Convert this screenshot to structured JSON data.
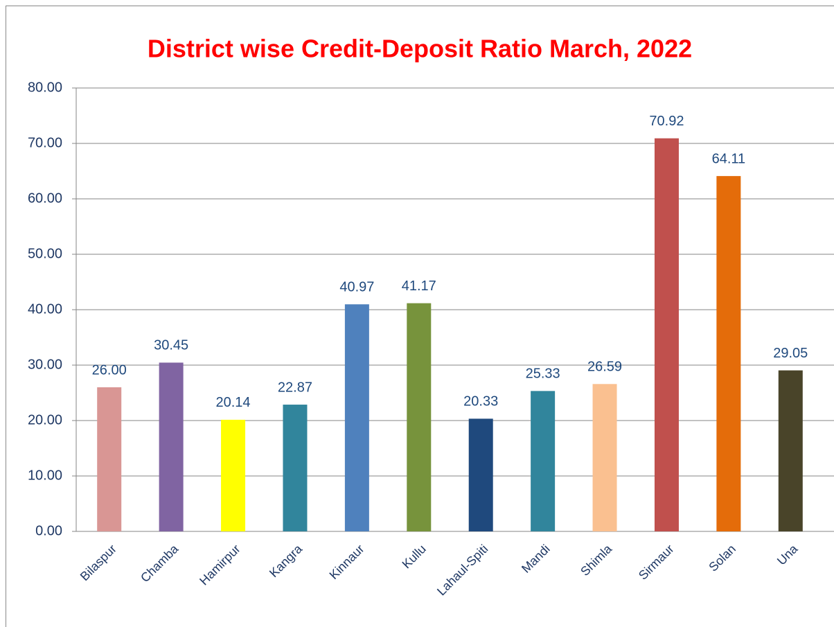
{
  "chart_data": {
    "type": "bar",
    "title": "District wise Credit-Deposit Ratio March, 2022",
    "categories": [
      "Bilaspur",
      "Chamba",
      "Hamirpur",
      "Kangra",
      "Kinnaur",
      "Kullu",
      "Lahaul-Spiti",
      "Mandi",
      "Shimla",
      "Sirmaur",
      "Solan",
      "Una"
    ],
    "values": [
      26.0,
      30.45,
      20.14,
      22.87,
      40.97,
      41.17,
      20.33,
      25.33,
      26.59,
      70.92,
      64.11,
      29.05
    ],
    "value_labels": [
      "26.00",
      "30.45",
      "20.14",
      "22.87",
      "40.97",
      "41.17",
      "20.33",
      "25.33",
      "26.59",
      "70.92",
      "64.11",
      "29.05"
    ],
    "colors": [
      "#d99694",
      "#8064a2",
      "#ffff00",
      "#31859c",
      "#4f81bd",
      "#77933c",
      "#1f497d",
      "#31859c",
      "#fac090",
      "#c0504d",
      "#e46c0a",
      "#494429"
    ],
    "ylim": [
      0,
      80
    ],
    "yticks": [
      {
        "value": 0,
        "label": "0.00"
      },
      {
        "value": 10,
        "label": "10.00"
      },
      {
        "value": 20,
        "label": "20.00"
      },
      {
        "value": 30,
        "label": "30.00"
      },
      {
        "value": 40,
        "label": "40.00"
      },
      {
        "value": 50,
        "label": "50.00"
      },
      {
        "value": 60,
        "label": "60.00"
      },
      {
        "value": 70,
        "label": "70.00"
      },
      {
        "value": 80,
        "label": "80.00"
      }
    ],
    "grid": true
  }
}
